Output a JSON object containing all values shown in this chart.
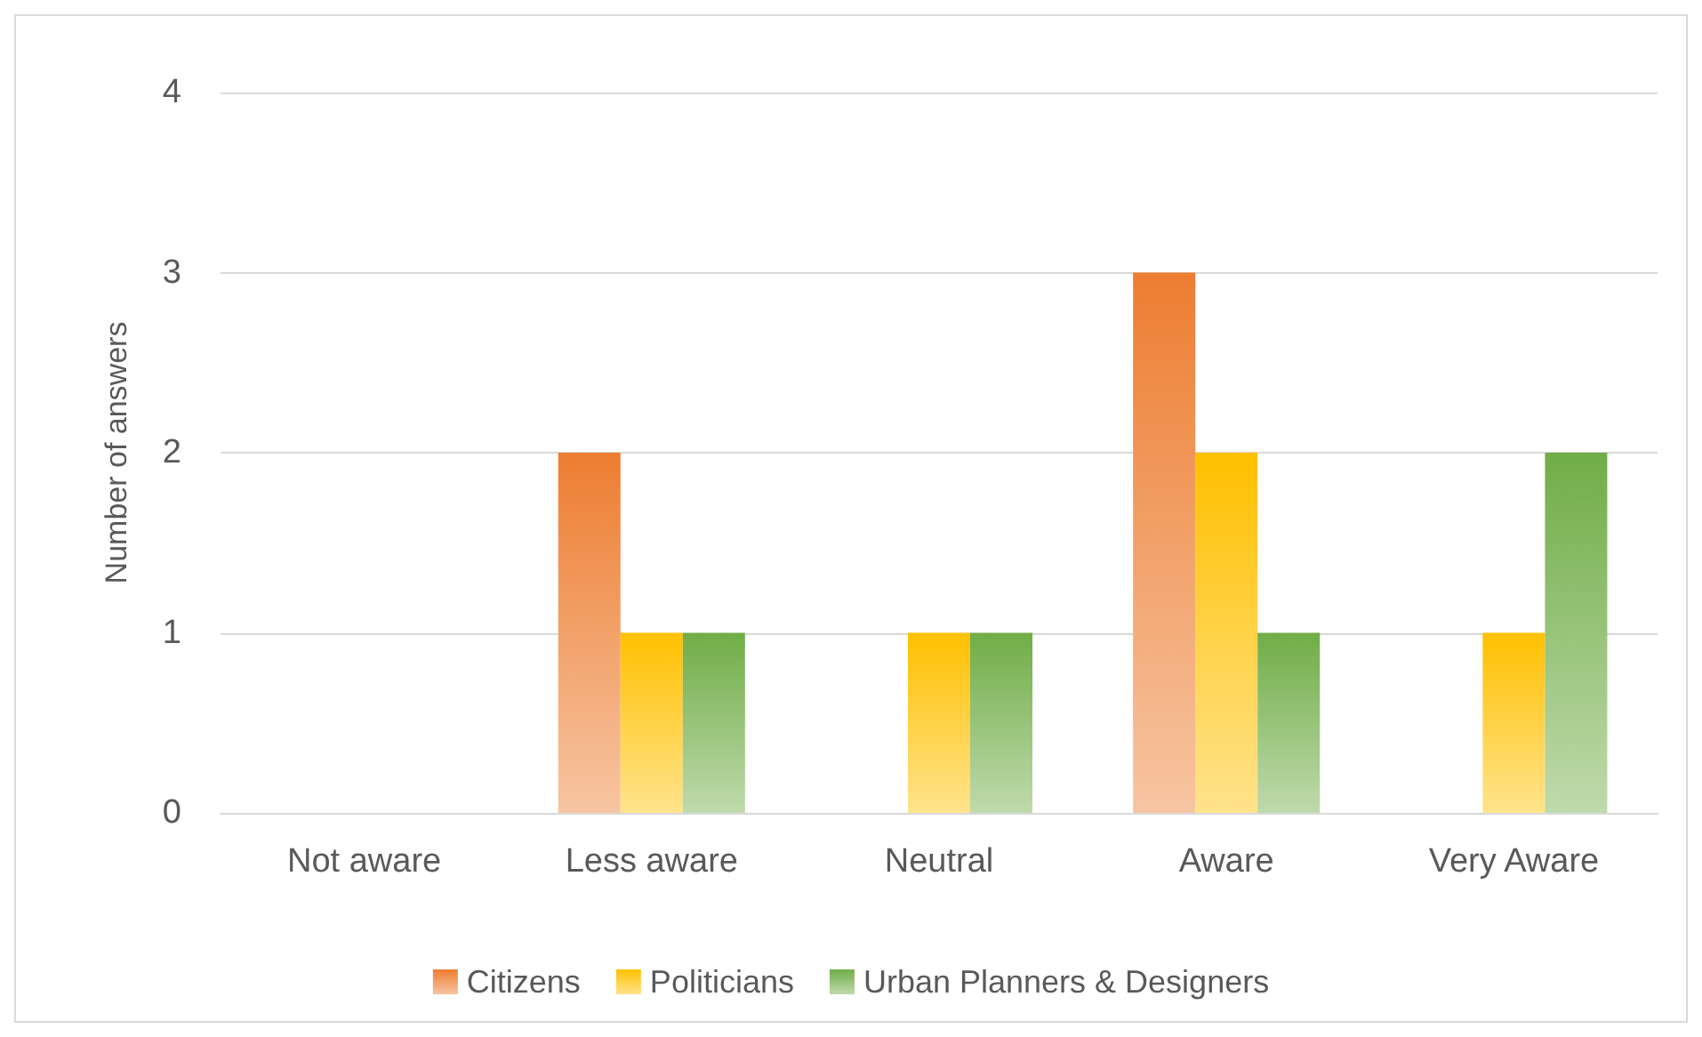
{
  "chart_data": {
    "type": "bar",
    "ylabel": "Number of answers",
    "categories": [
      "Not aware",
      "Less aware",
      "Neutral",
      "Aware",
      "Very Aware"
    ],
    "series": [
      {
        "name": "Citizens",
        "color": "#ed7d31",
        "values": [
          0,
          2,
          0,
          3,
          0
        ]
      },
      {
        "name": "Politicians",
        "color": "#ffc000",
        "values": [
          0,
          1,
          1,
          2,
          1
        ]
      },
      {
        "name": "Urban Planners & Designers",
        "color": "#70ad47",
        "values": [
          0,
          1,
          1,
          1,
          2
        ]
      }
    ],
    "ylim": [
      0,
      4
    ],
    "yticks": [
      0,
      1,
      2,
      3,
      4
    ],
    "grid": "y",
    "legend": "bottom"
  }
}
